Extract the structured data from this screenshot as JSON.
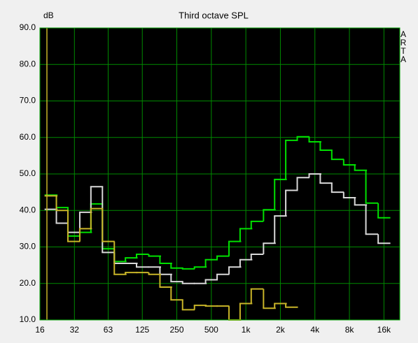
{
  "chart_data": {
    "type": "step",
    "title": "Third octave SPL",
    "y_unit": "dB",
    "watermark": "ARTA",
    "x": [
      20,
      25,
      31.5,
      40,
      50,
      63,
      80,
      100,
      125,
      160,
      200,
      250,
      315,
      400,
      500,
      630,
      800,
      1000,
      1250,
      1600,
      2000,
      2500,
      3150,
      4000,
      5000,
      6300,
      8000,
      10000,
      12500,
      16000
    ],
    "series": [
      {
        "color": "#00e000",
        "values": [
          44.2,
          40.8,
          33,
          34,
          41.8,
          29.5,
          26,
          27,
          28,
          27.5,
          25.5,
          24.2,
          24,
          24.5,
          26.5,
          27.5,
          31.5,
          35,
          37,
          40.2,
          48.5,
          59.2,
          60.2,
          58.8,
          56.5,
          54,
          52.5,
          51,
          42,
          38
        ]
      },
      {
        "color": "#d8d8d8",
        "values": [
          40.3,
          36.5,
          34,
          39.5,
          46.5,
          28.5,
          25.5,
          25.5,
          24.5,
          24.5,
          22.5,
          20.5,
          20,
          20,
          21,
          22.5,
          24.5,
          26.5,
          28,
          31,
          38.5,
          45.5,
          49,
          50,
          47.5,
          45,
          43.5,
          41.5,
          33.5,
          31
        ]
      },
      {
        "color": "#c8b428",
        "values": [
          44,
          40,
          31.5,
          35,
          40.5,
          31.5,
          22.5,
          23,
          23,
          22.5,
          19,
          15.5,
          12.8,
          14,
          13.8,
          13.8,
          10,
          14.5,
          18.5,
          13.2,
          14.5,
          13.5,
          null,
          null,
          null,
          null,
          null,
          null,
          null,
          null
        ]
      }
    ],
    "log_x": true,
    "grid": true,
    "xlim": [
      16,
      22000
    ],
    "ylim": [
      10,
      90
    ],
    "xticks": [
      16,
      32,
      63,
      125,
      250,
      500,
      {
        "value": 1000,
        "label": "1k"
      },
      {
        "value": 2000,
        "label": "2k"
      },
      {
        "value": 4000,
        "label": "4k"
      },
      {
        "value": 8000,
        "label": "8k"
      },
      {
        "value": 16000,
        "label": "16k"
      }
    ],
    "yticks": [
      {
        "value": 10,
        "label": "10.0"
      },
      {
        "value": 20,
        "label": "20.0"
      },
      {
        "value": 30,
        "label": "30.0"
      },
      {
        "value": 40,
        "label": "40.0"
      },
      {
        "value": 50,
        "label": "50.0"
      },
      {
        "value": 60,
        "label": "60.0"
      },
      {
        "value": 70,
        "label": "70.0"
      },
      {
        "value": 80,
        "label": "80.0"
      },
      {
        "value": 90,
        "label": "90.0"
      }
    ]
  }
}
